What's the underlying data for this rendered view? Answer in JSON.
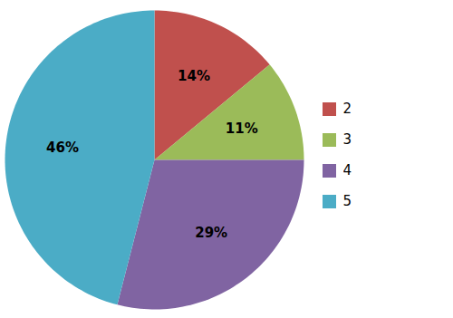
{
  "chart_data": {
    "type": "pie",
    "categories": [
      "2",
      "3",
      "4",
      "5"
    ],
    "values": [
      14,
      11,
      29,
      46
    ],
    "value_labels": [
      "14%",
      "11%",
      "29%",
      "46%"
    ],
    "colors": [
      "#c0504d",
      "#9bbb59",
      "#8064a2",
      "#4bacc6"
    ],
    "data_labels": true,
    "legend": "right"
  }
}
